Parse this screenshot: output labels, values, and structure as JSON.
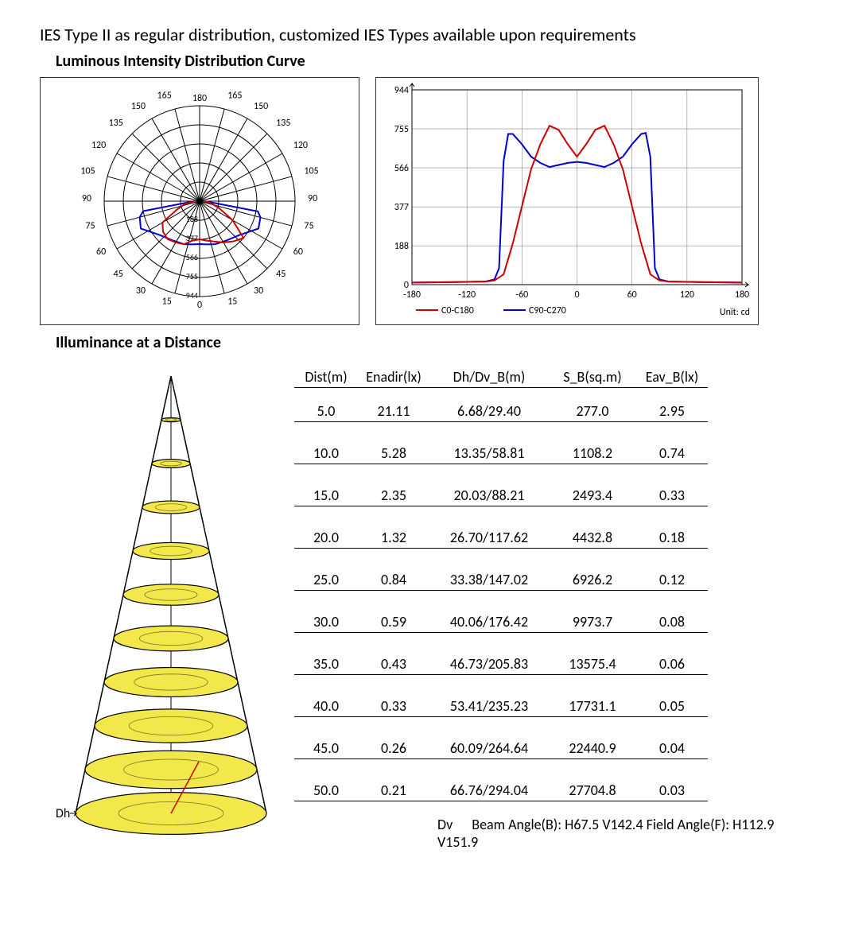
{
  "header_text": "IES Type II as regular distribution, customized IES Types available upon requirements",
  "section1_title": "Luminous Intensity Distribution Curve",
  "section2_title": "Illuminance at a Distance",
  "polar_chart": {
    "type": "polar",
    "angle_labels": [
      0,
      15,
      30,
      45,
      60,
      75,
      90,
      105,
      120,
      135,
      150,
      165,
      180
    ],
    "radial_labels": [
      "188",
      "377",
      "566",
      "755",
      "944"
    ],
    "ring_count": 5,
    "axis_color": "#000000",
    "curve1_color": "#cc0000",
    "curve2_color": "#0000cc",
    "curve1": [
      [
        -90,
        5
      ],
      [
        -80,
        15
      ],
      [
        -70,
        25
      ],
      [
        -60,
        45
      ],
      [
        -50,
        50
      ],
      [
        -40,
        52
      ],
      [
        -30,
        50
      ],
      [
        -20,
        48
      ],
      [
        -10,
        42
      ],
      [
        0,
        40
      ],
      [
        10,
        42
      ],
      [
        20,
        45
      ],
      [
        30,
        50
      ],
      [
        40,
        55
      ],
      [
        50,
        60
      ],
      [
        60,
        40
      ],
      [
        70,
        22
      ],
      [
        80,
        12
      ],
      [
        90,
        5
      ]
    ],
    "curve2": [
      [
        -90,
        5
      ],
      [
        -85,
        10
      ],
      [
        -80,
        60
      ],
      [
        -75,
        65
      ],
      [
        -65,
        68
      ],
      [
        -50,
        55
      ],
      [
        -35,
        50
      ],
      [
        -20,
        48
      ],
      [
        -10,
        46
      ],
      [
        0,
        45
      ],
      [
        10,
        46
      ],
      [
        20,
        48
      ],
      [
        35,
        50
      ],
      [
        50,
        55
      ],
      [
        65,
        68
      ],
      [
        75,
        66
      ],
      [
        80,
        62
      ],
      [
        85,
        10
      ],
      [
        90,
        5
      ]
    ]
  },
  "line_chart": {
    "type": "line",
    "xlim": [
      -180,
      180
    ],
    "xticks": [
      -180,
      -120,
      -60,
      0,
      60,
      120,
      180
    ],
    "ylim": [
      0,
      944
    ],
    "yticks": [
      0,
      188,
      377,
      566,
      755,
      944
    ],
    "grid_color": "#888888",
    "axis_color": "#000000",
    "unit_label": "Unit: cd",
    "legend": [
      {
        "label": "C0-C180",
        "color": "#cc0000"
      },
      {
        "label": "C90-C270",
        "color": "#0000cc"
      }
    ],
    "series1_color": "#cc0000",
    "series2_color": "#0000cc",
    "series1": [
      [
        -180,
        10
      ],
      [
        -140,
        12
      ],
      [
        -100,
        15
      ],
      [
        -90,
        20
      ],
      [
        -80,
        50
      ],
      [
        -70,
        200
      ],
      [
        -60,
        380
      ],
      [
        -50,
        560
      ],
      [
        -40,
        680
      ],
      [
        -30,
        770
      ],
      [
        -20,
        750
      ],
      [
        -10,
        680
      ],
      [
        0,
        620
      ],
      [
        10,
        680
      ],
      [
        20,
        750
      ],
      [
        30,
        770
      ],
      [
        40,
        680
      ],
      [
        50,
        560
      ],
      [
        60,
        380
      ],
      [
        70,
        200
      ],
      [
        80,
        50
      ],
      [
        90,
        20
      ],
      [
        100,
        15
      ],
      [
        140,
        12
      ],
      [
        180,
        10
      ]
    ],
    "series2": [
      [
        -180,
        10
      ],
      [
        -140,
        12
      ],
      [
        -100,
        15
      ],
      [
        -90,
        25
      ],
      [
        -85,
        80
      ],
      [
        -80,
        600
      ],
      [
        -75,
        730
      ],
      [
        -70,
        730
      ],
      [
        -60,
        680
      ],
      [
        -50,
        620
      ],
      [
        -40,
        590
      ],
      [
        -30,
        570
      ],
      [
        -20,
        580
      ],
      [
        -10,
        590
      ],
      [
        0,
        595
      ],
      [
        10,
        590
      ],
      [
        20,
        580
      ],
      [
        30,
        570
      ],
      [
        40,
        590
      ],
      [
        50,
        620
      ],
      [
        60,
        680
      ],
      [
        70,
        730
      ],
      [
        75,
        735
      ],
      [
        80,
        620
      ],
      [
        85,
        80
      ],
      [
        90,
        25
      ],
      [
        100,
        15
      ],
      [
        140,
        12
      ],
      [
        180,
        10
      ]
    ]
  },
  "illuminance": {
    "headers": [
      "Dist(m)",
      "Enadir(lx)",
      "Dh/Dv_B(m)",
      "S_B(sq.m)",
      "Eav_B(lx)"
    ],
    "rows": [
      [
        "5.0",
        "21.11",
        "6.68/29.40",
        "277.0",
        "2.95"
      ],
      [
        "10.0",
        "5.28",
        "13.35/58.81",
        "1108.2",
        "0.74"
      ],
      [
        "15.0",
        "2.35",
        "20.03/88.21",
        "2493.4",
        "0.33"
      ],
      [
        "20.0",
        "1.32",
        "26.70/117.62",
        "4432.8",
        "0.18"
      ],
      [
        "25.0",
        "0.84",
        "33.38/147.02",
        "6926.2",
        "0.12"
      ],
      [
        "30.0",
        "0.59",
        "40.06/176.42",
        "9973.7",
        "0.08"
      ],
      [
        "35.0",
        "0.43",
        "46.73/205.83",
        "13575.4",
        "0.06"
      ],
      [
        "40.0",
        "0.33",
        "53.41/235.23",
        "17731.1",
        "0.05"
      ],
      [
        "45.0",
        "0.26",
        "60.09/264.64",
        "22440.9",
        "0.04"
      ],
      [
        "50.0",
        "0.21",
        "66.76/294.04",
        "27704.8",
        "0.03"
      ]
    ],
    "footer": "Beam Angle(B): H67.5 V142.4  Field Angle(F): H112.9 V151.9",
    "cone": {
      "levels": 10,
      "ellipse_fill": "#f2e84b",
      "ellipse_stroke": "#000000",
      "cone_stroke": "#000000",
      "red_line_color": "#cc0000",
      "dh_label": "Dh",
      "dv_label": "Dv"
    }
  }
}
